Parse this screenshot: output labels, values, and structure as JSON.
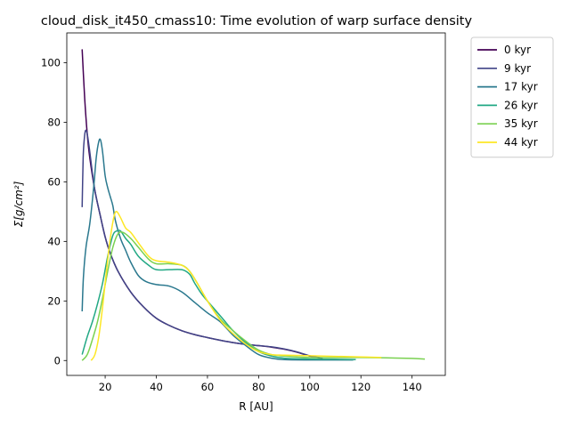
{
  "chart_data": {
    "type": "line",
    "title": "cloud_disk_it450_cmass10: Time evolution of warp surface density",
    "xlabel": "R [AU]",
    "ylabel": "Σ[g/cm²]",
    "xlim": [
      5,
      153
    ],
    "ylim": [
      -5,
      110
    ],
    "xticks": [
      20,
      40,
      60,
      80,
      100,
      120,
      140
    ],
    "yticks": [
      0,
      20,
      40,
      60,
      80,
      100
    ],
    "grid": false,
    "legend": "outside-top-right",
    "series": [
      {
        "name": "0 kyr",
        "color": "#440154",
        "points": [
          [
            11,
            104.5
          ],
          [
            12,
            88
          ],
          [
            13,
            76
          ],
          [
            14,
            68
          ],
          [
            16,
            57
          ],
          [
            18,
            49
          ],
          [
            20,
            41.5
          ],
          [
            22,
            36
          ],
          [
            25,
            30
          ],
          [
            30,
            23
          ],
          [
            35,
            18
          ],
          [
            40,
            14.2
          ],
          [
            45,
            11.8
          ],
          [
            50,
            10
          ],
          [
            55,
            8.7
          ],
          [
            60,
            7.7
          ],
          [
            65,
            6.8
          ],
          [
            70,
            6
          ],
          [
            75,
            5.4
          ],
          [
            80,
            5
          ],
          [
            85,
            4.5
          ],
          [
            90,
            3.8
          ],
          [
            95,
            2.8
          ],
          [
            100,
            1.5
          ],
          [
            105,
            0.7
          ]
        ]
      },
      {
        "name": "9 kyr",
        "color": "#414487",
        "points": [
          [
            11,
            51.5
          ],
          [
            11.4,
            68
          ],
          [
            11.8,
            74
          ],
          [
            12.3,
            77.2
          ],
          [
            13,
            76
          ],
          [
            14,
            70
          ],
          [
            15,
            63
          ],
          [
            16,
            57
          ],
          [
            18,
            49
          ],
          [
            20,
            41.5
          ],
          [
            22,
            36
          ],
          [
            25,
            30
          ],
          [
            30,
            23
          ],
          [
            35,
            18
          ],
          [
            40,
            14.2
          ],
          [
            45,
            11.8
          ],
          [
            50,
            10
          ],
          [
            55,
            8.7
          ],
          [
            60,
            7.7
          ],
          [
            65,
            6.8
          ],
          [
            70,
            6
          ],
          [
            75,
            5.4
          ],
          [
            80,
            5
          ],
          [
            85,
            4.6
          ],
          [
            90,
            3.9
          ],
          [
            95,
            2.9
          ],
          [
            100,
            1.6
          ],
          [
            105,
            0.8
          ]
        ]
      },
      {
        "name": "17 kyr",
        "color": "#2a788e",
        "points": [
          [
            11,
            16.5
          ],
          [
            11.5,
            28
          ],
          [
            12.5,
            38
          ],
          [
            14,
            46
          ],
          [
            15.5,
            58
          ],
          [
            16.5,
            68
          ],
          [
            17.5,
            73.5
          ],
          [
            18.2,
            74
          ],
          [
            19,
            70
          ],
          [
            20,
            62
          ],
          [
            21,
            58
          ],
          [
            22,
            55
          ],
          [
            23,
            52
          ],
          [
            24,
            47
          ],
          [
            26,
            41
          ],
          [
            28,
            37
          ],
          [
            30,
            33
          ],
          [
            33,
            28.5
          ],
          [
            36,
            26.5
          ],
          [
            40,
            25.5
          ],
          [
            45,
            25
          ],
          [
            50,
            23
          ],
          [
            55,
            19.5
          ],
          [
            60,
            16
          ],
          [
            65,
            13
          ],
          [
            70,
            8.5
          ],
          [
            75,
            5
          ],
          [
            80,
            2
          ],
          [
            85,
            0.8
          ],
          [
            90,
            0.3
          ],
          [
            100,
            0.2
          ],
          [
            110,
            0.2
          ],
          [
            117,
            0.2
          ]
        ]
      },
      {
        "name": "26 kyr",
        "color": "#22a884",
        "points": [
          [
            11,
            2
          ],
          [
            13,
            8
          ],
          [
            15,
            13
          ],
          [
            17,
            19
          ],
          [
            19,
            26
          ],
          [
            21,
            35
          ],
          [
            23,
            42
          ],
          [
            24.5,
            43.5
          ],
          [
            26,
            43.5
          ],
          [
            28,
            41
          ],
          [
            30,
            39
          ],
          [
            33,
            35
          ],
          [
            37,
            32
          ],
          [
            40,
            30.5
          ],
          [
            45,
            30.5
          ],
          [
            50,
            30.5
          ],
          [
            53,
            29
          ],
          [
            55,
            26
          ],
          [
            58,
            22
          ],
          [
            62,
            18
          ],
          [
            66,
            14
          ],
          [
            70,
            10
          ],
          [
            75,
            6
          ],
          [
            80,
            3
          ],
          [
            85,
            1.5
          ],
          [
            90,
            0.8
          ],
          [
            100,
            0.5
          ],
          [
            110,
            0.4
          ],
          [
            118,
            0.3
          ]
        ]
      },
      {
        "name": "35 kyr",
        "color": "#7ad151",
        "points": [
          [
            11,
            0
          ],
          [
            13,
            2
          ],
          [
            15,
            7
          ],
          [
            17,
            13
          ],
          [
            19,
            21
          ],
          [
            21,
            30
          ],
          [
            23,
            38
          ],
          [
            25,
            42.5
          ],
          [
            27,
            43
          ],
          [
            30,
            41
          ],
          [
            33,
            38
          ],
          [
            37,
            34
          ],
          [
            40,
            32.5
          ],
          [
            45,
            32.5
          ],
          [
            50,
            32
          ],
          [
            53,
            30
          ],
          [
            56,
            26
          ],
          [
            60,
            20
          ],
          [
            65,
            14
          ],
          [
            70,
            10
          ],
          [
            75,
            6.5
          ],
          [
            80,
            3.5
          ],
          [
            85,
            2
          ],
          [
            90,
            1.5
          ],
          [
            100,
            1
          ],
          [
            110,
            1
          ],
          [
            120,
            1
          ],
          [
            130,
            0.9
          ],
          [
            140,
            0.7
          ],
          [
            145,
            0.5
          ]
        ]
      },
      {
        "name": "44 kyr",
        "color": "#fde725",
        "points": [
          [
            14.5,
            0
          ],
          [
            16,
            2
          ],
          [
            17.5,
            8
          ],
          [
            19,
            18
          ],
          [
            20.5,
            30
          ],
          [
            22,
            41
          ],
          [
            23.5,
            48.5
          ],
          [
            24.5,
            50
          ],
          [
            26,
            48
          ],
          [
            28,
            44.5
          ],
          [
            30,
            43
          ],
          [
            33,
            39.5
          ],
          [
            37,
            35
          ],
          [
            40,
            33.5
          ],
          [
            45,
            33
          ],
          [
            50,
            32
          ],
          [
            53,
            30
          ],
          [
            56,
            26
          ],
          [
            60,
            20
          ],
          [
            65,
            13.5
          ],
          [
            70,
            9
          ],
          [
            75,
            5.5
          ],
          [
            80,
            3
          ],
          [
            85,
            2
          ],
          [
            90,
            1.8
          ],
          [
            100,
            1.6
          ],
          [
            110,
            1.4
          ],
          [
            120,
            1.2
          ],
          [
            128,
            1
          ]
        ]
      }
    ]
  }
}
